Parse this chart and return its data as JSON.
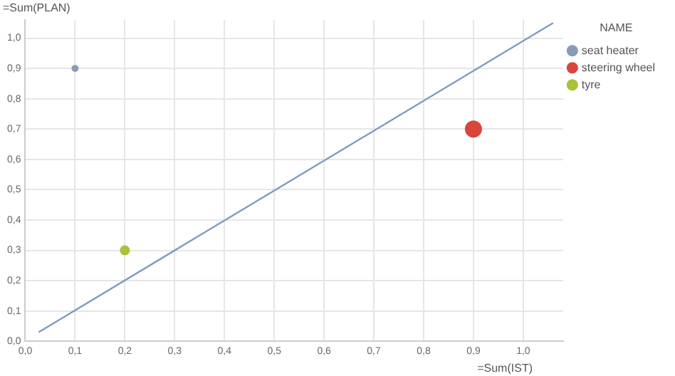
{
  "chart_data": {
    "type": "bubble",
    "xlabel": "=Sum(IST)",
    "ylabel": "=Sum(PLAN)",
    "legend_title": "NAME",
    "series": [
      {
        "name": "seat heater",
        "color": "#8a9bb5",
        "x": [
          0.1
        ],
        "values": [
          0.9
        ],
        "sizes": [
          0.13
        ]
      },
      {
        "name": "steering wheel",
        "color": "#d9453a",
        "x": [
          0.9
        ],
        "values": [
          0.7
        ],
        "sizes": [
          1
        ]
      },
      {
        "name": "tyre",
        "color": "#a8c23a",
        "x": [
          0.2
        ],
        "values": [
          0.3
        ],
        "sizes": [
          0.3
        ]
      },
      {
        "type": "line",
        "color": "#7f9cc0",
        "x": [
          0.027,
          1.06
        ],
        "values": [
          0.03,
          1.05
        ]
      }
    ],
    "xlim": [
      0,
      1.08
    ],
    "ylim": [
      0,
      1.06
    ],
    "xticks": [
      {
        "value": 0,
        "label": "0,0"
      },
      {
        "value": 0.1,
        "label": "0,1"
      },
      {
        "value": 0.2,
        "label": "0,2"
      },
      {
        "value": 0.3,
        "label": "0,3"
      },
      {
        "value": 0.4,
        "label": "0,4"
      },
      {
        "value": 0.5,
        "label": "0,5"
      },
      {
        "value": 0.6,
        "label": "0,6"
      },
      {
        "value": 0.7,
        "label": "0,7"
      },
      {
        "value": 0.8,
        "label": "0,8"
      },
      {
        "value": 0.9,
        "label": "0,9"
      },
      {
        "value": 1,
        "label": "1,0"
      }
    ],
    "yticks": [
      {
        "value": 0,
        "label": "0,0"
      },
      {
        "value": 0.1,
        "label": "0,1"
      },
      {
        "value": 0.2,
        "label": "0,2"
      },
      {
        "value": 0.3,
        "label": "0,3"
      },
      {
        "value": 0.4,
        "label": "0,4"
      },
      {
        "value": 0.5,
        "label": "0,5"
      },
      {
        "value": 0.6,
        "label": "0,6"
      },
      {
        "value": 0.7,
        "label": "0,7"
      },
      {
        "value": 0.8,
        "label": "0,8"
      },
      {
        "value": 0.9,
        "label": "0,9"
      },
      {
        "value": 1,
        "label": "1,0"
      }
    ],
    "grid": true,
    "legend": "top right"
  }
}
